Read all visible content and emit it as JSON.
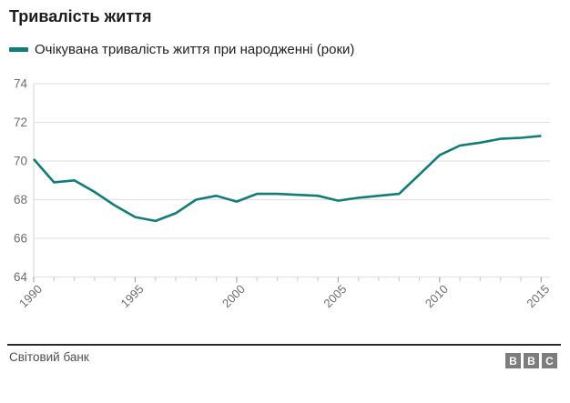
{
  "chart": {
    "title": "Тривалість життя",
    "legend_label": "Очікувана тривалість життя при народженні (роки)"
  },
  "footer": {
    "source": "Світовий банк",
    "bbc": [
      "B",
      "B",
      "C"
    ]
  },
  "colors": {
    "line": "#127d78",
    "grid": "#e3e3e3",
    "axis_line": "#dedede",
    "tick_minor": "#cfcfcf",
    "tick_major": "#aaaaaa",
    "axis_label": "#6d6d6d",
    "title_text": "#1d1d1d",
    "legend_text": "#222222",
    "source_text": "#4d4d4d",
    "footer_rule": "#2b2b2b",
    "bbc_gray": "#7d7d7d"
  },
  "chart_data": {
    "type": "line",
    "title": "Тривалість життя",
    "xlabel": "",
    "ylabel": "",
    "x": [
      1990,
      1991,
      1992,
      1993,
      1994,
      1995,
      1996,
      1997,
      1998,
      1999,
      2000,
      2001,
      2002,
      2003,
      2004,
      2005,
      2006,
      2007,
      2008,
      2009,
      2010,
      2011,
      2012,
      2013,
      2014,
      2015
    ],
    "series": [
      {
        "name": "Очікувана тривалість життя при народженні (роки)",
        "values": [
          70.1,
          68.9,
          69.0,
          68.4,
          67.7,
          67.1,
          66.9,
          67.3,
          68.0,
          68.2,
          67.9,
          68.3,
          68.3,
          68.25,
          68.2,
          67.95,
          68.1,
          68.2,
          68.3,
          69.3,
          70.3,
          70.8,
          70.95,
          71.15,
          71.2,
          71.3
        ]
      }
    ],
    "x_tick_labels": [
      1990,
      1995,
      2000,
      2005,
      2010,
      2015
    ],
    "y_ticks": [
      64,
      66,
      68,
      70,
      72,
      74
    ],
    "xlim": [
      1990,
      2015
    ],
    "ylim": [
      64,
      74
    ],
    "grid": "horizontal",
    "legend_position": "top-left",
    "source": "Світовий банк"
  }
}
